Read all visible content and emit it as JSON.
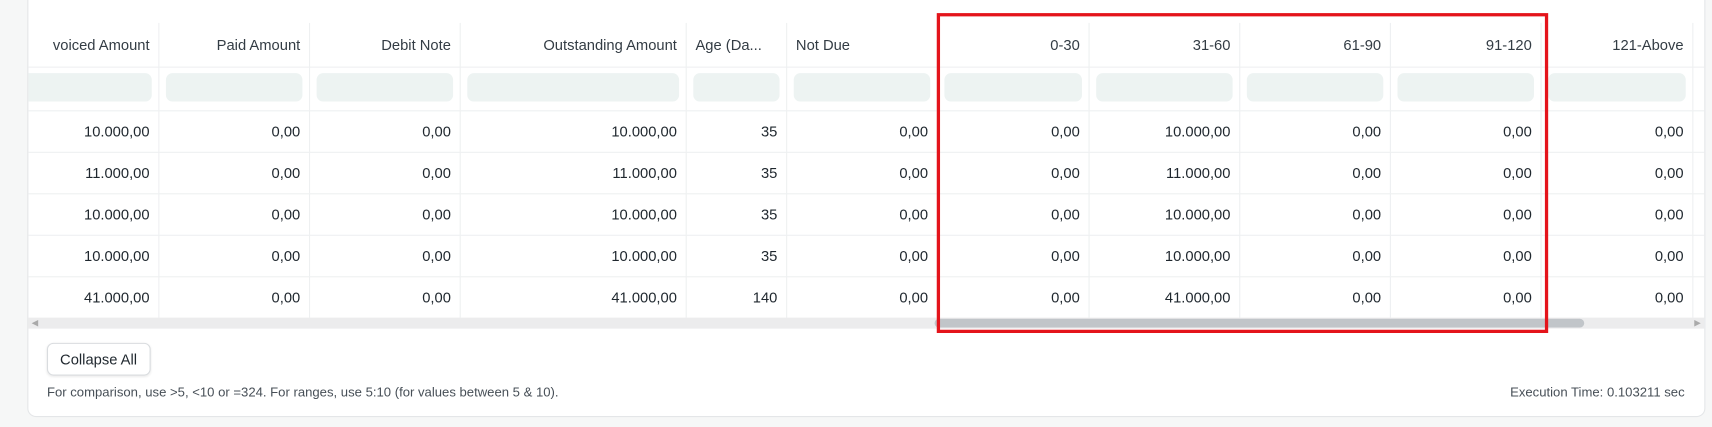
{
  "table": {
    "columns": [
      "voiced Amount",
      "Paid Amount",
      "Debit Note",
      "Outstanding Amount",
      "Age (Da...",
      "Not Due",
      "0-30",
      "31-60",
      "61-90",
      "91-120",
      "121-Above"
    ],
    "rows": [
      [
        "10.000,00",
        "0,00",
        "0,00",
        "10.000,00",
        "35",
        "0,00",
        "0,00",
        "10.000,00",
        "0,00",
        "0,00",
        "0,00"
      ],
      [
        "11.000,00",
        "0,00",
        "0,00",
        "11.000,00",
        "35",
        "0,00",
        "0,00",
        "11.000,00",
        "0,00",
        "0,00",
        "0,00"
      ],
      [
        "10.000,00",
        "0,00",
        "0,00",
        "10.000,00",
        "35",
        "0,00",
        "0,00",
        "10.000,00",
        "0,00",
        "0,00",
        "0,00"
      ],
      [
        "10.000,00",
        "0,00",
        "0,00",
        "10.000,00",
        "35",
        "0,00",
        "0,00",
        "10.000,00",
        "0,00",
        "0,00",
        "0,00"
      ],
      [
        "41.000,00",
        "0,00",
        "0,00",
        "41.000,00",
        "140",
        "0,00",
        "0,00",
        "41.000,00",
        "0,00",
        "0,00",
        "0,00"
      ]
    ],
    "scroll_position_percent": 75
  },
  "collapse_label": "Collapse All",
  "help_text": "For comparison, use >5, <10 or =324. For ranges, use 5:10 (for values between 5 & 10).",
  "execution_time": "Execution Time: 0.103211 sec",
  "highlight_color": "#e4141b"
}
